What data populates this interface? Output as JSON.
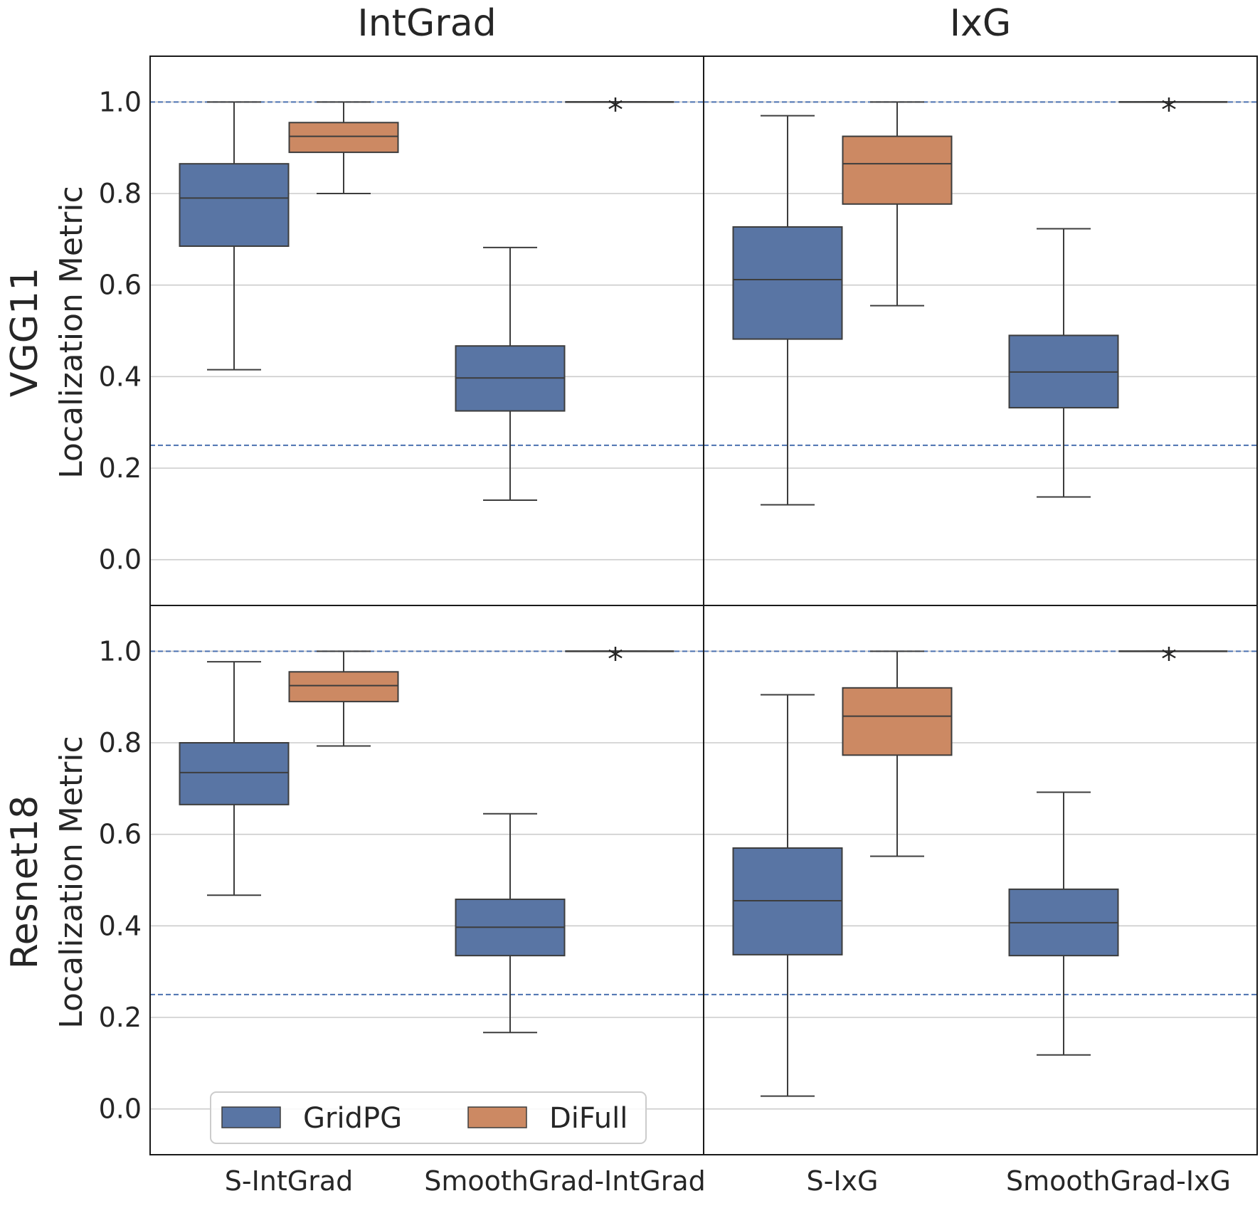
{
  "chart_data": {
    "type": "box",
    "column_titles": [
      "IntGrad",
      "IxG"
    ],
    "row_titles": [
      "VGG11",
      "Resnet18"
    ],
    "ylabel": "Localization Metric",
    "ylim": [
      -0.1,
      1.1
    ],
    "yticks": [
      "0.0",
      "0.2",
      "0.4",
      "0.6",
      "0.8",
      "1.0"
    ],
    "reference_lines": [
      0.25,
      1.0
    ],
    "grid": "horizontal",
    "legend": {
      "position": "bottom-left",
      "entries": [
        "GridPG",
        "DiFull"
      ]
    },
    "colors": {
      "GridPG": "#5975a4",
      "DiFull": "#cc8963",
      "reference_line": "#4c72b0",
      "grid": "#cccccc"
    },
    "panels": [
      {
        "row": "VGG11",
        "column": "IntGrad",
        "categories": [
          "S-IntGrad",
          "SmoothGrad-IntGrad"
        ],
        "boxes": [
          {
            "category": "S-IntGrad",
            "series": "GridPG",
            "whisker_low": 0.415,
            "q1": 0.685,
            "median": 0.79,
            "q3": 0.865,
            "whisker_high": 1.0
          },
          {
            "category": "S-IntGrad",
            "series": "DiFull",
            "whisker_low": 0.8,
            "q1": 0.89,
            "median": 0.925,
            "q3": 0.955,
            "whisker_high": 1.0
          },
          {
            "category": "SmoothGrad-IntGrad",
            "series": "GridPG",
            "whisker_low": 0.13,
            "q1": 0.325,
            "median": 0.397,
            "q3": 0.467,
            "whisker_high": 0.682
          },
          {
            "category": "SmoothGrad-IntGrad",
            "series": "DiFull",
            "whisker_low": 1.0,
            "q1": 1.0,
            "median": 1.0,
            "q3": 1.0,
            "whisker_high": 1.0,
            "marker": "*"
          }
        ]
      },
      {
        "row": "VGG11",
        "column": "IxG",
        "categories": [
          "S-IxG",
          "SmoothGrad-IxG"
        ],
        "boxes": [
          {
            "category": "S-IxG",
            "series": "GridPG",
            "whisker_low": 0.12,
            "q1": 0.482,
            "median": 0.612,
            "q3": 0.727,
            "whisker_high": 0.97
          },
          {
            "category": "S-IxG",
            "series": "DiFull",
            "whisker_low": 0.555,
            "q1": 0.777,
            "median": 0.865,
            "q3": 0.925,
            "whisker_high": 1.0
          },
          {
            "category": "SmoothGrad-IxG",
            "series": "GridPG",
            "whisker_low": 0.137,
            "q1": 0.332,
            "median": 0.41,
            "q3": 0.49,
            "whisker_high": 0.723
          },
          {
            "category": "SmoothGrad-IxG",
            "series": "DiFull",
            "whisker_low": 1.0,
            "q1": 1.0,
            "median": 1.0,
            "q3": 1.0,
            "whisker_high": 1.0,
            "marker": "*"
          }
        ]
      },
      {
        "row": "Resnet18",
        "column": "IntGrad",
        "categories": [
          "S-IntGrad",
          "SmoothGrad-IntGrad"
        ],
        "boxes": [
          {
            "category": "S-IntGrad",
            "series": "GridPG",
            "whisker_low": 0.467,
            "q1": 0.665,
            "median": 0.735,
            "q3": 0.8,
            "whisker_high": 0.977
          },
          {
            "category": "S-IntGrad",
            "series": "DiFull",
            "whisker_low": 0.793,
            "q1": 0.89,
            "median": 0.925,
            "q3": 0.955,
            "whisker_high": 1.0
          },
          {
            "category": "SmoothGrad-IntGrad",
            "series": "GridPG",
            "whisker_low": 0.167,
            "q1": 0.335,
            "median": 0.397,
            "q3": 0.458,
            "whisker_high": 0.645
          },
          {
            "category": "SmoothGrad-IntGrad",
            "series": "DiFull",
            "whisker_low": 1.0,
            "q1": 1.0,
            "median": 1.0,
            "q3": 1.0,
            "whisker_high": 1.0,
            "marker": "*"
          }
        ]
      },
      {
        "row": "Resnet18",
        "column": "IxG",
        "categories": [
          "S-IxG",
          "SmoothGrad-IxG"
        ],
        "boxes": [
          {
            "category": "S-IxG",
            "series": "GridPG",
            "whisker_low": 0.028,
            "q1": 0.337,
            "median": 0.455,
            "q3": 0.57,
            "whisker_high": 0.905
          },
          {
            "category": "S-IxG",
            "series": "DiFull",
            "whisker_low": 0.552,
            "q1": 0.773,
            "median": 0.858,
            "q3": 0.92,
            "whisker_high": 1.0
          },
          {
            "category": "SmoothGrad-IxG",
            "series": "GridPG",
            "whisker_low": 0.118,
            "q1": 0.335,
            "median": 0.407,
            "q3": 0.48,
            "whisker_high": 0.692
          },
          {
            "category": "SmoothGrad-IxG",
            "series": "DiFull",
            "whisker_low": 1.0,
            "q1": 1.0,
            "median": 1.0,
            "q3": 1.0,
            "whisker_high": 1.0,
            "marker": "*"
          }
        ]
      }
    ]
  }
}
